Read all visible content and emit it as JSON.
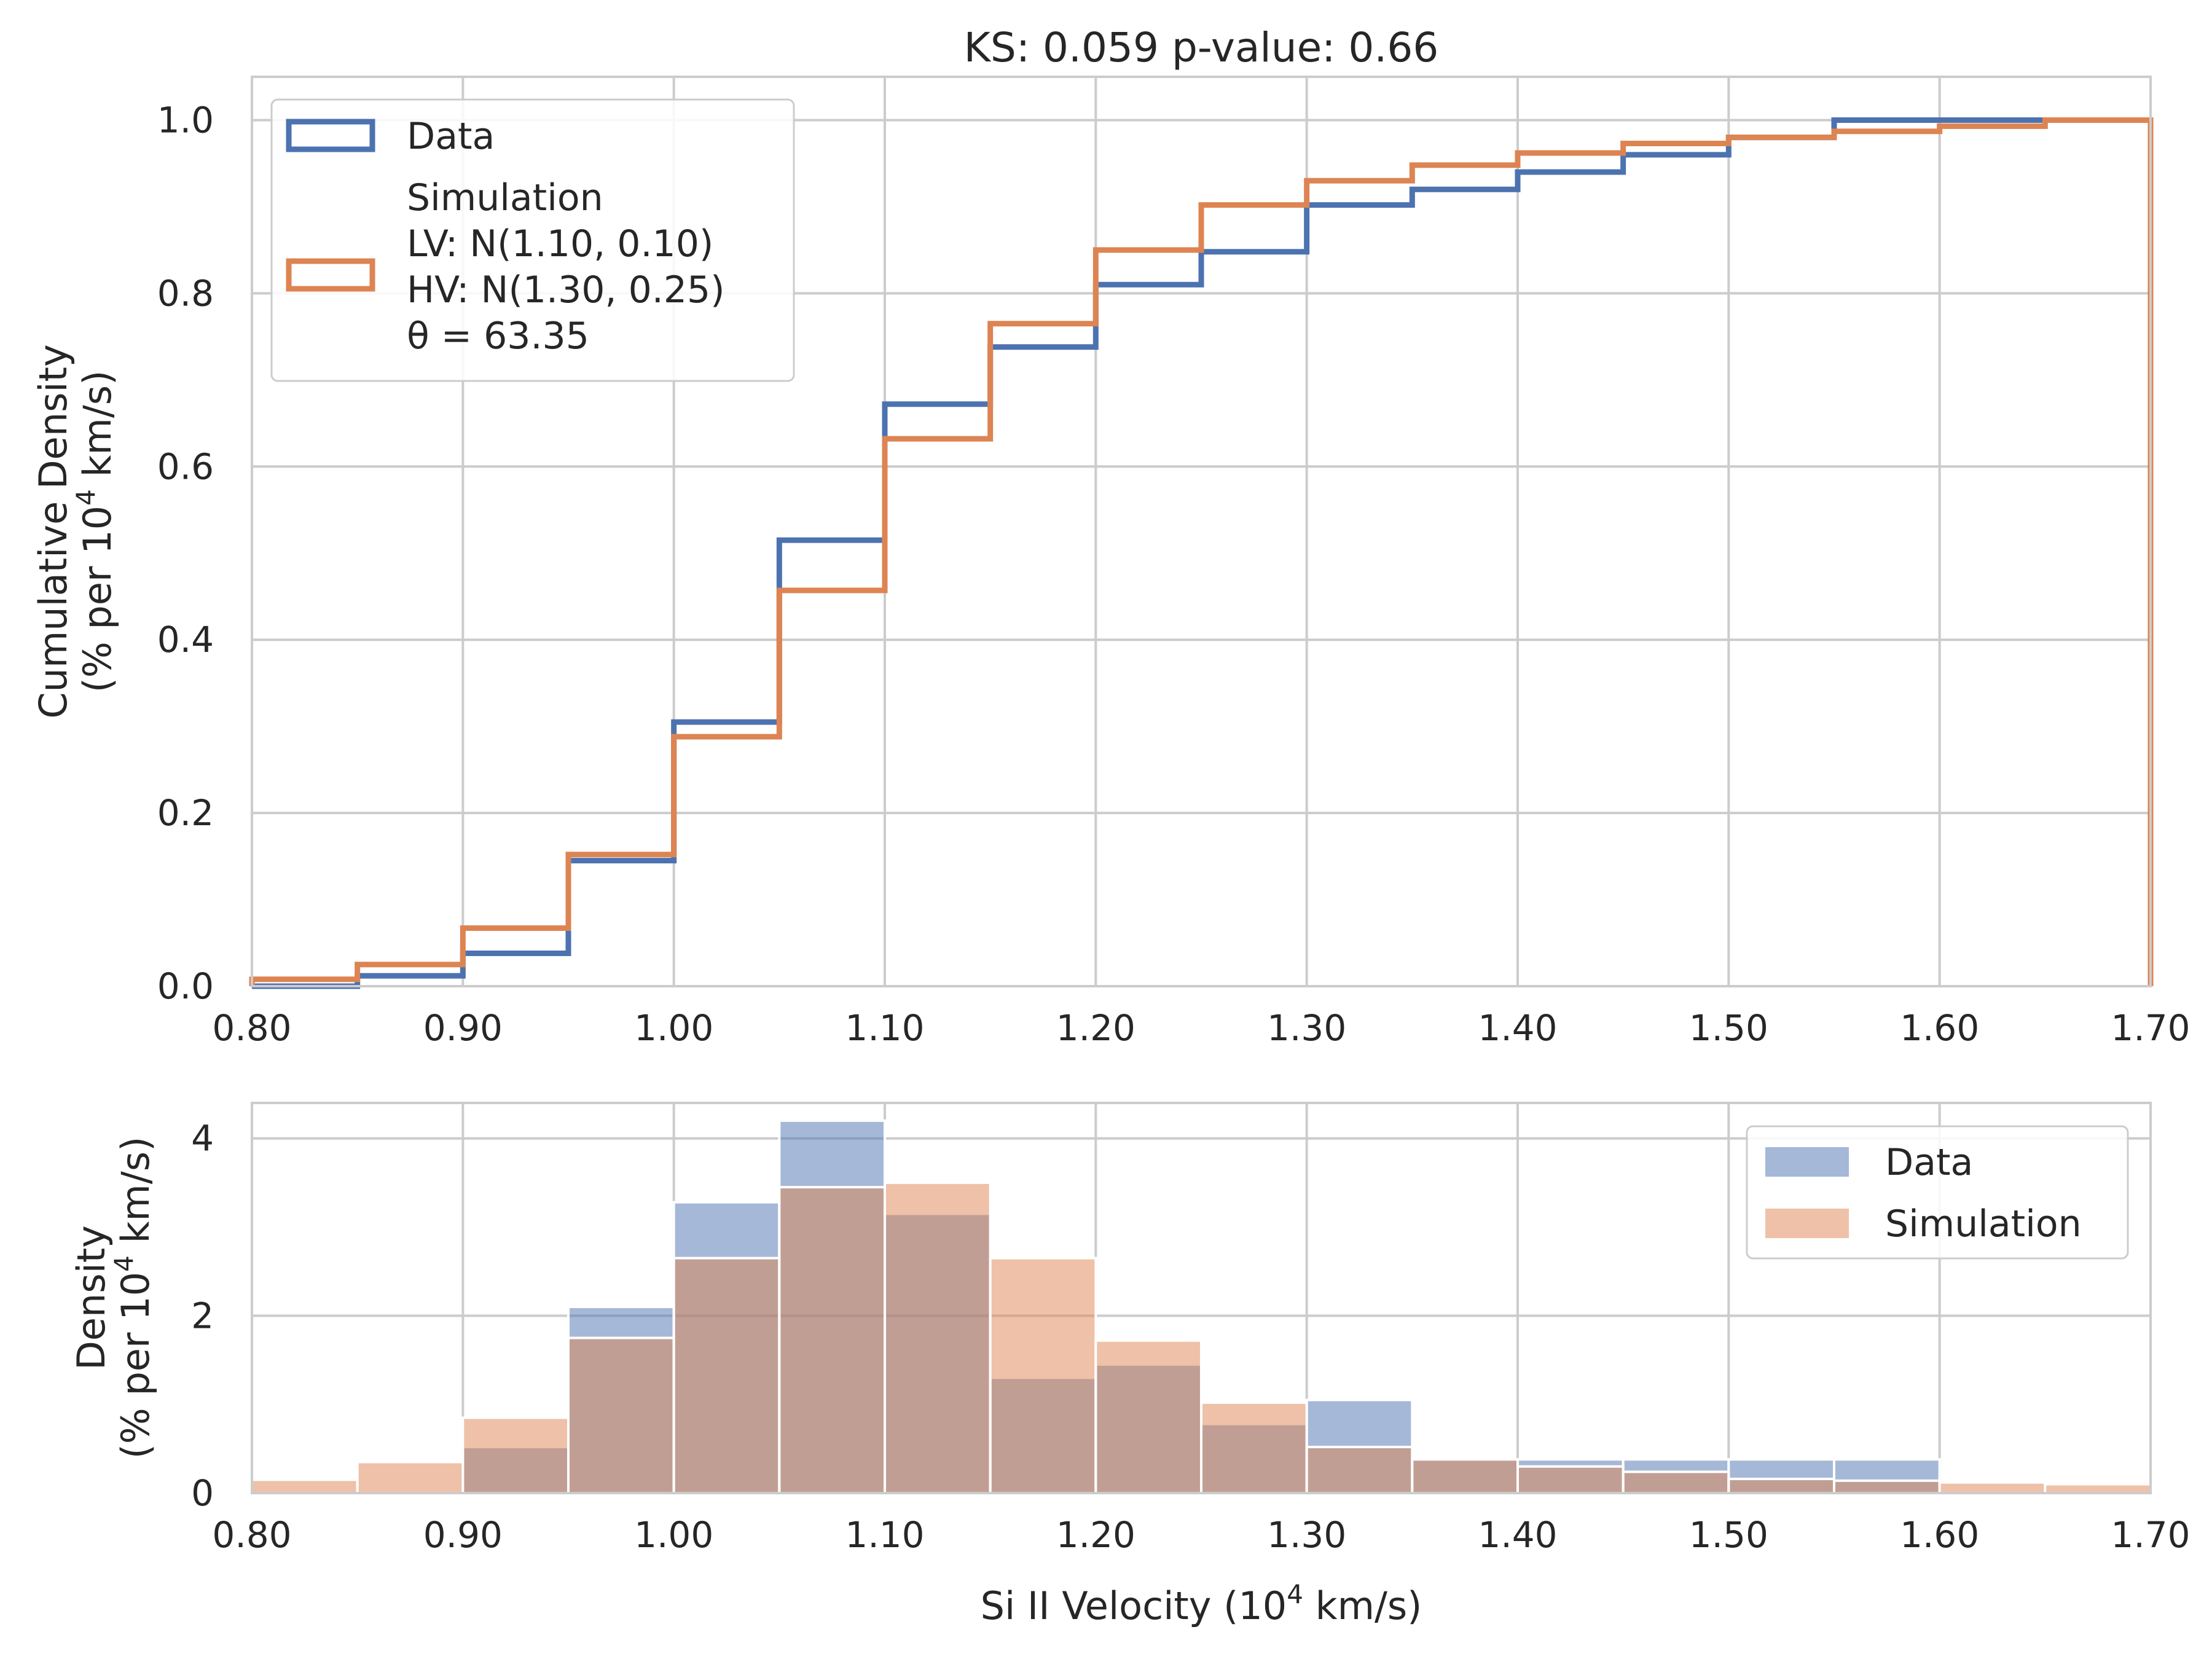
{
  "chart_data": [
    {
      "type": "line",
      "subtype": "cumulative-step-histogram",
      "title": "KS: 0.059 p-value: 0.66",
      "ylabel_line1": "Cumulative Density",
      "ylabel_line2_prefix": "(% per 10",
      "ylabel_line2_sup": "4",
      "ylabel_line2_suffix": " km/s)",
      "xlim": [
        0.8,
        1.7
      ],
      "ylim": [
        0.0,
        1.05
      ],
      "xticks": [
        "0.80",
        "0.90",
        "1.00",
        "1.10",
        "1.20",
        "1.30",
        "1.40",
        "1.50",
        "1.60",
        "1.70"
      ],
      "yticks": [
        "0.0",
        "0.2",
        "0.4",
        "0.6",
        "0.8",
        "1.0"
      ],
      "grid": true,
      "legend_position": "upper-left",
      "bin_edges": [
        0.8,
        0.85,
        0.9,
        0.95,
        1.0,
        1.05,
        1.1,
        1.15,
        1.2,
        1.25,
        1.3,
        1.35,
        1.4,
        1.45,
        1.5,
        1.55,
        1.6,
        1.65,
        1.7
      ],
      "series": [
        {
          "name": "Data",
          "color": "#4c72b0",
          "values": [
            0.0,
            0.012,
            0.038,
            0.145,
            0.305,
            0.515,
            0.672,
            0.738,
            0.81,
            0.848,
            0.902,
            0.92,
            0.94,
            0.96,
            0.98,
            1.0,
            1.0,
            1.0
          ]
        },
        {
          "name": "Simulation",
          "legend_lines": [
            "Simulation",
            "LV: N(1.10, 0.10)",
            "HV: N(1.30, 0.25)",
            "θ = 63.35"
          ],
          "color": "#dd8452",
          "values": [
            0.008,
            0.025,
            0.067,
            0.152,
            0.288,
            0.457,
            0.632,
            0.765,
            0.85,
            0.902,
            0.93,
            0.948,
            0.962,
            0.973,
            0.98,
            0.987,
            0.993,
            1.0
          ]
        }
      ]
    },
    {
      "type": "bar",
      "subtype": "overlaid-histogram",
      "xlabel_prefix": "Si II Velocity (10",
      "xlabel_sup": "4",
      "xlabel_suffix": " km/s)",
      "ylabel_line1": "Density",
      "ylabel_line2_prefix": "(% per 10",
      "ylabel_line2_sup": "4",
      "ylabel_line2_suffix": " km/s)",
      "xlim": [
        0.8,
        1.7
      ],
      "ylim": [
        0,
        4.4
      ],
      "xticks": [
        "0.80",
        "0.90",
        "1.00",
        "1.10",
        "1.20",
        "1.30",
        "1.40",
        "1.50",
        "1.60",
        "1.70"
      ],
      "yticks": [
        "0",
        "2",
        "4"
      ],
      "grid": true,
      "legend_position": "upper-right",
      "bin_edges": [
        0.8,
        0.85,
        0.9,
        0.95,
        1.0,
        1.05,
        1.1,
        1.15,
        1.2,
        1.25,
        1.3,
        1.35,
        1.4,
        1.45,
        1.5,
        1.55,
        1.6,
        1.65,
        1.7
      ],
      "series": [
        {
          "name": "Data",
          "color": "#4c72b0",
          "values": [
            0.0,
            0.0,
            0.52,
            2.1,
            3.28,
            4.2,
            3.15,
            1.3,
            1.45,
            0.78,
            1.05,
            0.38,
            0.38,
            0.38,
            0.38,
            0.38,
            0.0,
            0.0
          ]
        },
        {
          "name": "Simulation",
          "color": "#dd8452",
          "values": [
            0.15,
            0.35,
            0.85,
            1.75,
            2.65,
            3.45,
            3.5,
            2.65,
            1.72,
            1.02,
            0.52,
            0.38,
            0.3,
            0.24,
            0.16,
            0.14,
            0.12,
            0.1
          ]
        }
      ]
    }
  ]
}
